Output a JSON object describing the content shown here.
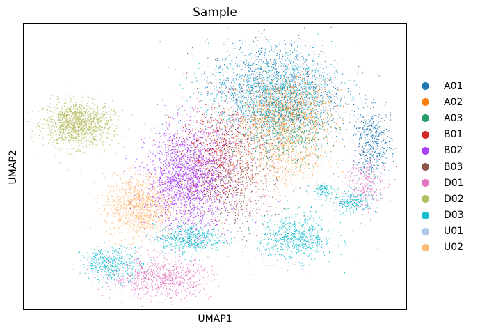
{
  "chart_data": {
    "type": "scatter",
    "title": "Sample",
    "xlabel": "UMAP1",
    "ylabel": "UMAP2",
    "ticks": "none",
    "grid": false,
    "legend_position": "right",
    "xlim": [
      0,
      100
    ],
    "ylim": [
      0,
      100
    ],
    "categories": [
      "A01",
      "A02",
      "A03",
      "B01",
      "B02",
      "B03",
      "D01",
      "D02",
      "D03",
      "U01",
      "U02"
    ],
    "colors": {
      "A01": "#1f77b4",
      "A02": "#ff7f0e",
      "A03": "#279e68",
      "B01": "#d62728",
      "B02": "#aa40fc",
      "B03": "#8c564b",
      "D01": "#e377c2",
      "D02": "#b5bd61",
      "D03": "#17becf",
      "U01": "#aec7e8",
      "U02": "#ffbb78"
    },
    "clusters": [
      {
        "sample": "D02",
        "x": 14,
        "y": 65,
        "sx": 4.5,
        "sy": 4.0,
        "n": 1500
      },
      {
        "sample": "U02",
        "x": 30,
        "y": 36,
        "sx": 4.5,
        "sy": 5.5,
        "n": 1400
      },
      {
        "sample": "B02",
        "x": 43,
        "y": 46,
        "sx": 5.5,
        "sy": 9.0,
        "n": 2300
      },
      {
        "sample": "B01",
        "x": 52,
        "y": 56,
        "sx": 6.0,
        "sy": 9.0,
        "n": 900
      },
      {
        "sample": "B03",
        "x": 55,
        "y": 45,
        "sx": 6.0,
        "sy": 9.0,
        "n": 700
      },
      {
        "sample": "A01",
        "x": 66,
        "y": 77,
        "sx": 9.0,
        "sy": 8.0,
        "n": 1500
      },
      {
        "sample": "A02",
        "x": 68,
        "y": 68,
        "sx": 6.0,
        "sy": 6.5,
        "n": 1200
      },
      {
        "sample": "A03",
        "x": 70,
        "y": 62,
        "sx": 6.0,
        "sy": 6.0,
        "n": 600
      },
      {
        "sample": "U01",
        "x": 66,
        "y": 72,
        "sx": 8.0,
        "sy": 9.0,
        "n": 900
      },
      {
        "sample": "D03",
        "x": 65,
        "y": 76,
        "sx": 8.0,
        "sy": 7.5,
        "n": 1000
      },
      {
        "sample": "U02",
        "x": 69,
        "y": 52,
        "sx": 5.0,
        "sy": 5.0,
        "n": 500
      },
      {
        "sample": "D03",
        "x": 43,
        "y": 25,
        "sx": 4.5,
        "sy": 2.5,
        "n": 600
      },
      {
        "sample": "D03",
        "x": 71,
        "y": 25,
        "sx": 5.0,
        "sy": 4.0,
        "n": 800
      },
      {
        "sample": "D03",
        "x": 23,
        "y": 16,
        "sx": 4.0,
        "sy": 3.0,
        "n": 500
      },
      {
        "sample": "D01",
        "x": 36,
        "y": 11,
        "sx": 6.5,
        "sy": 3.5,
        "n": 900
      },
      {
        "sample": "A01",
        "x": 91,
        "y": 58,
        "sx": 2.5,
        "sy": 6.0,
        "n": 500
      },
      {
        "sample": "D01",
        "x": 89,
        "y": 44,
        "sx": 2.5,
        "sy": 5.0,
        "n": 350
      },
      {
        "sample": "D03",
        "x": 86,
        "y": 38,
        "sx": 3.0,
        "sy": 2.0,
        "n": 250
      },
      {
        "sample": "D03",
        "x": 78,
        "y": 42,
        "sx": 1.5,
        "sy": 1.2,
        "n": 120
      }
    ]
  },
  "legend": {
    "items": [
      {
        "label": "A01",
        "color": "#1f77b4"
      },
      {
        "label": "A02",
        "color": "#ff7f0e"
      },
      {
        "label": "A03",
        "color": "#279e68"
      },
      {
        "label": "B01",
        "color": "#d62728"
      },
      {
        "label": "B02",
        "color": "#aa40fc"
      },
      {
        "label": "B03",
        "color": "#8c564b"
      },
      {
        "label": "D01",
        "color": "#e377c2"
      },
      {
        "label": "D02",
        "color": "#b5bd61"
      },
      {
        "label": "D03",
        "color": "#17becf"
      },
      {
        "label": "U01",
        "color": "#aec7e8"
      },
      {
        "label": "U02",
        "color": "#ffbb78"
      }
    ]
  }
}
